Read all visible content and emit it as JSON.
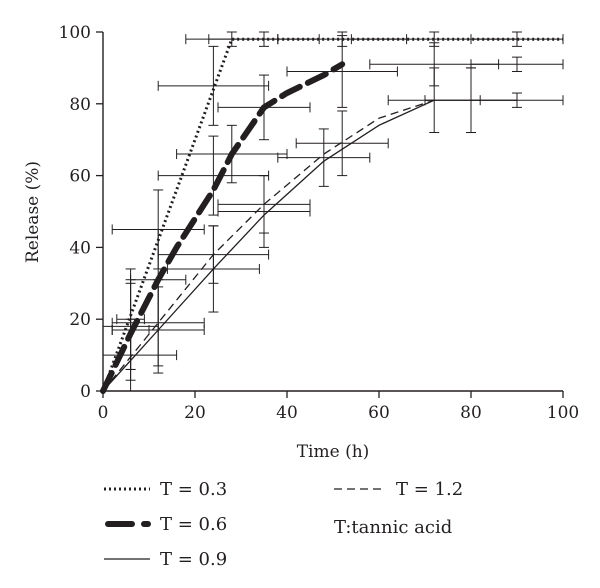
{
  "chart_data": {
    "type": "line",
    "xlabel": "Time (h)",
    "ylabel": "Release (%)",
    "xlim": [
      0,
      100
    ],
    "ylim": [
      0,
      100
    ],
    "xticks": [
      0,
      20,
      40,
      60,
      80,
      100
    ],
    "yticks": [
      0,
      20,
      40,
      60,
      80,
      100
    ],
    "grid": false,
    "legend_position": "bottom",
    "note": "T:tannic acid",
    "series": [
      {
        "name": "T = 0.3",
        "style": "dotted",
        "line": [
          [
            0,
            0
          ],
          [
            28,
            98
          ],
          [
            100,
            98
          ]
        ],
        "points": [
          {
            "x": 6,
            "y": 20,
            "xerr": 3,
            "yerr": 14
          },
          {
            "x": 12,
            "y": 45,
            "xerr": 10,
            "yerr": 11
          },
          {
            "x": 24,
            "y": 85,
            "xerr": 12,
            "yerr": 11
          },
          {
            "x": 28,
            "y": 98,
            "xerr": 10,
            "yerr": 2
          },
          {
            "x": 35,
            "y": 98,
            "xerr": 12,
            "yerr": 2
          },
          {
            "x": 52,
            "y": 98,
            "xerr": 14,
            "yerr": 2
          },
          {
            "x": 72,
            "y": 98,
            "xerr": 18,
            "yerr": 2
          },
          {
            "x": 90,
            "y": 98,
            "xerr": 10,
            "yerr": 2
          }
        ]
      },
      {
        "name": "T = 0.6",
        "style": "long-dash",
        "line": [
          [
            0,
            0
          ],
          [
            6,
            16
          ],
          [
            12,
            31
          ],
          [
            16,
            40
          ],
          [
            24,
            56
          ],
          [
            28,
            66
          ],
          [
            35,
            79
          ],
          [
            40,
            83
          ],
          [
            48,
            88
          ],
          [
            52,
            91
          ]
        ],
        "points": [
          {
            "x": 6,
            "y": 17,
            "xerr": 4,
            "yerr": 14
          },
          {
            "x": 12,
            "y": 31,
            "xerr": 6,
            "yerr": 14
          },
          {
            "x": 24,
            "y": 60,
            "xerr": 12,
            "yerr": 11
          },
          {
            "x": 28,
            "y": 66,
            "xerr": 12,
            "yerr": 8
          },
          {
            "x": 35,
            "y": 79,
            "xerr": 10,
            "yerr": 9
          },
          {
            "x": 52,
            "y": 89,
            "xerr": 12,
            "yerr": 10
          },
          {
            "x": 72,
            "y": 91,
            "xerr": 14,
            "yerr": 6
          },
          {
            "x": 90,
            "y": 91,
            "xerr": 10,
            "yerr": 2
          }
        ]
      },
      {
        "name": "T = 0.9",
        "style": "solid",
        "line": [
          [
            0,
            0
          ],
          [
            12,
            17
          ],
          [
            24,
            34
          ],
          [
            35,
            49
          ],
          [
            48,
            64
          ],
          [
            60,
            74
          ],
          [
            72,
            81
          ]
        ],
        "points": [
          {
            "x": 6,
            "y": 10,
            "xerr": 10,
            "yerr": 10
          },
          {
            "x": 12,
            "y": 17,
            "xerr": 10,
            "yerr": 12
          },
          {
            "x": 24,
            "y": 34,
            "xerr": 10,
            "yerr": 12
          },
          {
            "x": 35,
            "y": 50,
            "xerr": 10,
            "yerr": 10
          },
          {
            "x": 48,
            "y": 65,
            "xerr": 10,
            "yerr": 8
          },
          {
            "x": 72,
            "y": 81,
            "xerr": 10,
            "yerr": 9
          },
          {
            "x": 80,
            "y": 81,
            "xerr": 10,
            "yerr": 9
          },
          {
            "x": 90,
            "y": 81,
            "xerr": 10,
            "yerr": 2
          }
        ]
      },
      {
        "name": "T = 1.2",
        "style": "dashed",
        "line": [
          [
            0,
            0
          ],
          [
            12,
            19
          ],
          [
            24,
            38
          ],
          [
            35,
            52
          ],
          [
            48,
            66
          ],
          [
            60,
            76
          ],
          [
            72,
            81
          ]
        ],
        "points": [
          {
            "x": 6,
            "y": 18,
            "xerr": 6,
            "yerr": 12
          },
          {
            "x": 12,
            "y": 19,
            "xerr": 10,
            "yerr": 12
          },
          {
            "x": 24,
            "y": 38,
            "xerr": 12,
            "yerr": 8
          },
          {
            "x": 35,
            "y": 52,
            "xerr": 10,
            "yerr": 8
          },
          {
            "x": 52,
            "y": 69,
            "xerr": 10,
            "yerr": 9
          },
          {
            "x": 80,
            "y": 81,
            "xerr": 10,
            "yerr": 9
          }
        ]
      }
    ]
  }
}
